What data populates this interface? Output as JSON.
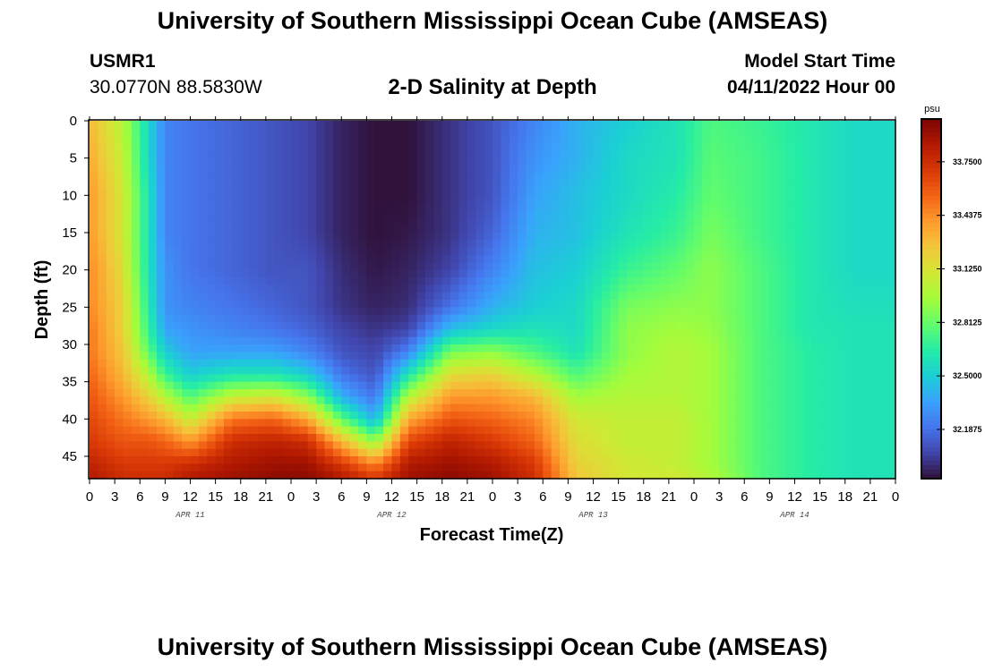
{
  "title": "University of Southern Mississippi Ocean Cube (AMSEAS)",
  "title_repeat": "University of Southern Mississippi Ocean Cube (AMSEAS)",
  "station": {
    "id": "USMR1",
    "coords": "30.0770N  88.5830W"
  },
  "model": {
    "label": "Model Start Time",
    "value": "04/11/2022 Hour 00"
  },
  "chart_data": {
    "type": "heatmap",
    "title": "2-D Salinity at Depth",
    "xlabel": "Forecast Time(Z)",
    "ylabel": "Depth (ft)",
    "colorbar_label": "psu",
    "x_range_hours": [
      0,
      96
    ],
    "y_range_ft": [
      0,
      48
    ],
    "x_tick_labels": [
      "0",
      "3",
      "6",
      "9",
      "12",
      "15",
      "18",
      "21",
      "0",
      "3",
      "6",
      "9",
      "12",
      "15",
      "18",
      "21",
      "0",
      "3",
      "6",
      "9",
      "12",
      "15",
      "18",
      "21",
      "0",
      "3",
      "6",
      "9",
      "12",
      "15",
      "18",
      "21",
      "0"
    ],
    "y_ticks": [
      0,
      5,
      10,
      15,
      20,
      25,
      30,
      35,
      40,
      45
    ],
    "day_labels": [
      {
        "label": "APR 11",
        "hour": 12
      },
      {
        "label": "APR 12",
        "hour": 36
      },
      {
        "label": "APR 13",
        "hour": 60
      },
      {
        "label": "APR 14",
        "hour": 84
      }
    ],
    "colorbar_ticks": [
      {
        "value": 33.75,
        "label": "33.7500"
      },
      {
        "value": 33.4375,
        "label": "33.4375"
      },
      {
        "value": 33.125,
        "label": "33.1250"
      },
      {
        "value": 32.8125,
        "label": "32.8125"
      },
      {
        "value": 32.5,
        "label": "32.5000"
      },
      {
        "value": 32.1875,
        "label": "32.1875"
      }
    ],
    "color_range": [
      31.9,
      34.0
    ],
    "colormap": [
      "#30123b",
      "#4145ab",
      "#4675ed",
      "#39a2fc",
      "#1bcfd4",
      "#24eca6",
      "#61fc6c",
      "#a4fc3b",
      "#d1e834",
      "#f3c63a",
      "#fe9b2d",
      "#f36315",
      "#d93806",
      "#b11901",
      "#7a0402"
    ],
    "depth_nodes_ft": [
      0,
      5,
      10,
      15,
      20,
      25,
      28,
      31,
      34,
      37,
      40,
      43,
      46,
      48
    ],
    "profiles": [
      {
        "hour": 0,
        "values": [
          33.3,
          33.35,
          33.4,
          33.4,
          33.45,
          33.45,
          33.5,
          33.5,
          33.55,
          33.6,
          33.65,
          33.7,
          33.8,
          33.85
        ]
      },
      {
        "hour": 4,
        "values": [
          33.0,
          33.05,
          33.1,
          33.1,
          33.15,
          33.2,
          33.2,
          33.25,
          33.3,
          33.4,
          33.5,
          33.6,
          33.7,
          33.75
        ]
      },
      {
        "hour": 7,
        "values": [
          32.55,
          32.55,
          32.6,
          32.6,
          32.6,
          32.65,
          32.7,
          32.8,
          33.0,
          33.2,
          33.4,
          33.6,
          33.7,
          33.75
        ]
      },
      {
        "hour": 9,
        "values": [
          32.25,
          32.25,
          32.25,
          32.25,
          32.3,
          32.3,
          32.35,
          32.5,
          32.7,
          33.0,
          33.3,
          33.55,
          33.7,
          33.75
        ]
      },
      {
        "hour": 12,
        "values": [
          32.2,
          32.2,
          32.2,
          32.2,
          32.2,
          32.25,
          32.3,
          32.35,
          32.5,
          32.75,
          33.05,
          33.4,
          33.75,
          33.85
        ]
      },
      {
        "hour": 17,
        "values": [
          32.15,
          32.15,
          32.15,
          32.15,
          32.15,
          32.2,
          32.25,
          32.35,
          32.6,
          33.05,
          33.5,
          33.75,
          33.85,
          33.9
        ]
      },
      {
        "hour": 22,
        "values": [
          32.1,
          32.1,
          32.1,
          32.1,
          32.1,
          32.15,
          32.2,
          32.35,
          32.6,
          33.1,
          33.55,
          33.8,
          33.9,
          33.95
        ]
      },
      {
        "hour": 26,
        "values": [
          32.05,
          32.05,
          32.05,
          32.05,
          32.1,
          32.1,
          32.15,
          32.25,
          32.5,
          32.9,
          33.35,
          33.75,
          33.9,
          33.95
        ]
      },
      {
        "hour": 30,
        "values": [
          31.95,
          31.95,
          31.95,
          31.95,
          31.98,
          32.0,
          32.05,
          32.1,
          32.2,
          32.4,
          32.8,
          33.3,
          33.7,
          33.85
        ]
      },
      {
        "hour": 34,
        "values": [
          31.9,
          31.9,
          31.9,
          31.9,
          31.92,
          31.95,
          32.0,
          32.05,
          32.1,
          32.2,
          32.4,
          32.9,
          33.45,
          33.7
        ]
      },
      {
        "hour": 38,
        "values": [
          31.9,
          31.9,
          31.9,
          31.92,
          31.95,
          31.98,
          32.05,
          32.25,
          32.6,
          33.0,
          33.35,
          33.65,
          33.85,
          33.9
        ]
      },
      {
        "hour": 43,
        "values": [
          32.0,
          32.0,
          32.0,
          32.0,
          32.05,
          32.2,
          32.45,
          32.85,
          33.15,
          33.4,
          33.6,
          33.8,
          33.9,
          33.95
        ]
      },
      {
        "hour": 48,
        "values": [
          32.1,
          32.1,
          32.1,
          32.15,
          32.25,
          32.4,
          32.55,
          32.9,
          33.2,
          33.4,
          33.55,
          33.7,
          33.85,
          33.9
        ]
      },
      {
        "hour": 53,
        "values": [
          32.25,
          32.3,
          32.35,
          32.4,
          32.45,
          32.5,
          32.6,
          32.75,
          33.0,
          33.3,
          33.45,
          33.55,
          33.7,
          33.75
        ]
      },
      {
        "hour": 58,
        "values": [
          32.4,
          32.4,
          32.45,
          32.45,
          32.5,
          32.55,
          32.55,
          32.6,
          32.75,
          32.95,
          33.1,
          33.15,
          33.2,
          33.25
        ]
      },
      {
        "hour": 64,
        "values": [
          32.5,
          32.55,
          32.55,
          32.6,
          32.7,
          32.85,
          32.9,
          32.9,
          32.95,
          33.0,
          33.05,
          33.05,
          33.1,
          33.1
        ]
      },
      {
        "hour": 70,
        "values": [
          32.6,
          32.6,
          32.65,
          32.7,
          32.8,
          32.9,
          32.95,
          33.0,
          33.0,
          33.0,
          33.05,
          33.05,
          33.05,
          33.1
        ]
      },
      {
        "hour": 74,
        "values": [
          32.75,
          32.78,
          32.8,
          32.85,
          32.9,
          32.9,
          32.92,
          32.95,
          32.95,
          32.95,
          32.95,
          32.95,
          32.95,
          33.0
        ]
      },
      {
        "hour": 80,
        "values": [
          32.7,
          32.72,
          32.72,
          32.72,
          32.75,
          32.75,
          32.75,
          32.75,
          32.75,
          32.75,
          32.75,
          32.75,
          32.75,
          32.75
        ]
      },
      {
        "hour": 86,
        "values": [
          32.62,
          32.62,
          32.62,
          32.62,
          32.62,
          32.62,
          32.62,
          32.65,
          32.65,
          32.65,
          32.65,
          32.65,
          32.65,
          32.65
        ]
      },
      {
        "hour": 91,
        "values": [
          32.55,
          32.55,
          32.55,
          32.55,
          32.55,
          32.58,
          32.6,
          32.6,
          32.6,
          32.6,
          32.6,
          32.6,
          32.6,
          32.6
        ]
      },
      {
        "hour": 96,
        "values": [
          32.55,
          32.55,
          32.55,
          32.55,
          32.55,
          32.58,
          32.6,
          32.6,
          32.6,
          32.6,
          32.6,
          32.6,
          32.6,
          32.6
        ]
      }
    ]
  }
}
